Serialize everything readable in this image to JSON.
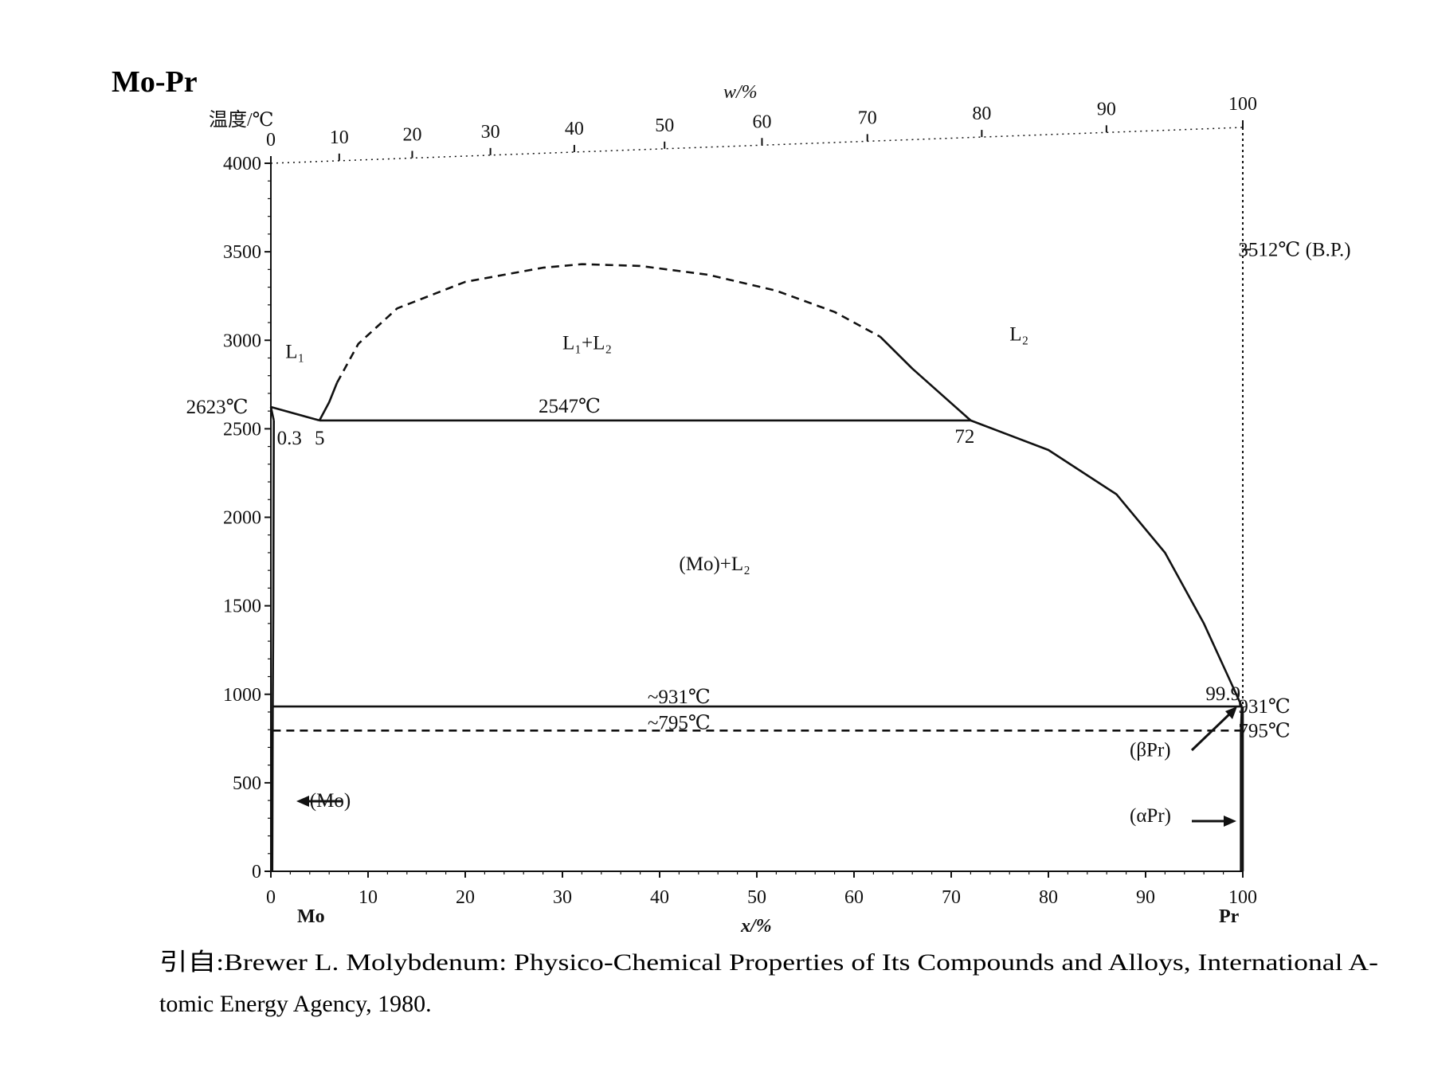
{
  "chart_data": {
    "type": "line",
    "title": "Mo-Pr",
    "ylabel": "温度/℃",
    "xlabel": "x/%",
    "x2label": "w/%",
    "xlim": [
      0,
      100
    ],
    "ylim": [
      0,
      4000
    ],
    "x_ticks": [
      "0",
      "10",
      "20",
      "30",
      "40",
      "50",
      "60",
      "70",
      "80",
      "90",
      "100"
    ],
    "x2_ticks": [
      "0",
      "10",
      "20",
      "30",
      "40",
      "50",
      "60",
      "70",
      "80",
      "90",
      "100"
    ],
    "y_ticks": [
      "0",
      "500",
      "1000",
      "1500",
      "2000",
      "2500",
      "3000",
      "3500",
      "4000"
    ],
    "left_element": "Mo",
    "right_element": "Pr",
    "series": [
      {
        "style": "solid",
        "points": [
          [
            0,
            2623
          ],
          [
            0.3,
            2547
          ]
        ]
      },
      {
        "style": "solid",
        "points": [
          [
            0.3,
            2547
          ],
          [
            0.25,
            1500
          ],
          [
            0.2,
            931
          ],
          [
            0.15,
            0
          ]
        ]
      },
      {
        "style": "solid",
        "points": [
          [
            0,
            2623
          ],
          [
            5,
            2547
          ]
        ]
      },
      {
        "style": "solid",
        "points": [
          [
            5,
            2547
          ],
          [
            6,
            2650
          ],
          [
            6.8,
            2760
          ]
        ]
      },
      {
        "style": "dashed",
        "points": [
          [
            6.8,
            2760
          ],
          [
            9,
            2980
          ],
          [
            13,
            3180
          ],
          [
            20,
            3330
          ],
          [
            28,
            3410
          ],
          [
            32,
            3430
          ],
          [
            38,
            3420
          ],
          [
            45,
            3370
          ],
          [
            52,
            3280
          ],
          [
            58,
            3160
          ],
          [
            62.7,
            3020
          ]
        ]
      },
      {
        "style": "solid",
        "points": [
          [
            62.7,
            3020
          ],
          [
            66,
            2840
          ],
          [
            72,
            2547
          ]
        ]
      },
      {
        "style": "solid",
        "points": [
          [
            5,
            2547
          ],
          [
            72,
            2547
          ]
        ]
      },
      {
        "style": "solid",
        "points": [
          [
            72,
            2547
          ],
          [
            80,
            2380
          ],
          [
            87,
            2130
          ],
          [
            92,
            1800
          ],
          [
            96,
            1400
          ],
          [
            98.5,
            1100
          ],
          [
            99.9,
            931
          ]
        ]
      },
      {
        "style": "solid",
        "points": [
          [
            0.2,
            931
          ],
          [
            99.9,
            931
          ]
        ]
      },
      {
        "style": "dashed",
        "points": [
          [
            0.2,
            795
          ],
          [
            99.8,
            795
          ]
        ]
      },
      {
        "style": "solid",
        "points": [
          [
            99.9,
            931
          ],
          [
            99.8,
            795
          ],
          [
            99.8,
            0
          ]
        ]
      },
      {
        "style": "solid",
        "points": [
          [
            100,
            931
          ],
          [
            100,
            0
          ]
        ]
      }
    ],
    "annotations": [
      {
        "text": "2623℃",
        "x": -2,
        "y": 2623
      },
      {
        "text": "0.3",
        "x": 0.3,
        "y": 2547
      },
      {
        "text": "5",
        "x": 5,
        "y": 2547
      },
      {
        "text": "2547℃",
        "x": 30,
        "y": 2547
      },
      {
        "text": "72",
        "x": 72,
        "y": 2547
      },
      {
        "text": "L₁",
        "x": 1.5,
        "y": 2900
      },
      {
        "text": "L₁+L₂",
        "x": 30,
        "y": 2950
      },
      {
        "text": "L₂",
        "x": 76,
        "y": 3000
      },
      {
        "text": "(Mo)+L₂",
        "x": 42,
        "y": 1700
      },
      {
        "text": "~931℃",
        "x": 42,
        "y": 931
      },
      {
        "text": "~795℃",
        "x": 42,
        "y": 795
      },
      {
        "text": "99.9",
        "x": 97,
        "y": 931
      },
      {
        "text": "931℃",
        "x": 102,
        "y": 931
      },
      {
        "text": "795℃",
        "x": 102,
        "y": 795
      },
      {
        "text": "3512℃ (B.P.)",
        "x": 102,
        "y": 3512
      },
      {
        "text": "(Mo)",
        "x": 4,
        "y": 400
      },
      {
        "text": "(βPr)",
        "x": 90,
        "y": 650
      },
      {
        "text": "(αPr)",
        "x": 90,
        "y": 280
      }
    ],
    "grid": false
  },
  "caption": {
    "line1": "引自:Brewer L. Molybdenum: Physico-Chemical Properties of Its Compounds and Alloys, International A-",
    "line2": "tomic Energy Agency, 1980."
  }
}
